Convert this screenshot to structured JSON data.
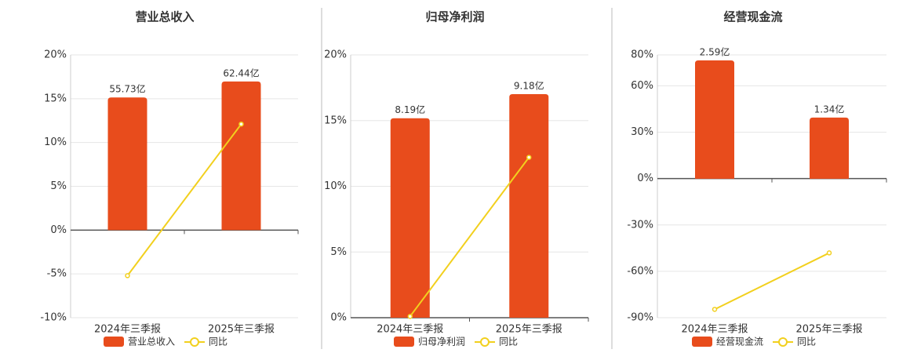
{
  "chart_data": [
    {
      "type": "combo",
      "title": "营业总收入",
      "categories": [
        "2024年三季报",
        "2025年三季报"
      ],
      "series": [
        {
          "name": "营业总收入",
          "color": "#e84c1c",
          "type": "bar",
          "axis": "y2",
          "values": [
            55.73,
            62.44
          ],
          "value_labels": [
            "55.73亿",
            "62.44亿"
          ]
        },
        {
          "name": "同比",
          "color": "#f2d01e",
          "type": "line",
          "values": [
            -5.2,
            12.1
          ]
        }
      ],
      "ylim": [
        -10,
        20
      ],
      "yticks": [
        {
          "value": -10,
          "label": "-10%"
        },
        {
          "value": -5,
          "label": "-5%"
        },
        {
          "value": 0,
          "label": "0%"
        },
        {
          "value": 5,
          "label": "5%"
        },
        {
          "value": 10,
          "label": "10%"
        },
        {
          "value": 15,
          "label": "15%"
        },
        {
          "value": 20,
          "label": "20%"
        }
      ],
      "y2lim": [
        -36.8,
        73.6
      ],
      "grid": true
    },
    {
      "type": "combo",
      "title": "归母净利润",
      "categories": [
        "2024年三季报",
        "2025年三季报"
      ],
      "series": [
        {
          "name": "归母净利润",
          "color": "#e84c1c",
          "type": "bar",
          "axis": "y2",
          "values": [
            8.19,
            9.18
          ],
          "value_labels": [
            "8.19亿",
            "9.18亿"
          ]
        },
        {
          "name": "同比",
          "color": "#f2d01e",
          "type": "line",
          "values": [
            0.1,
            12.2
          ]
        }
      ],
      "ylim": [
        0,
        20
      ],
      "yticks": [
        {
          "value": 0,
          "label": "0%"
        },
        {
          "value": 5,
          "label": "5%"
        },
        {
          "value": 10,
          "label": "10%"
        },
        {
          "value": 15,
          "label": "15%"
        },
        {
          "value": 20,
          "label": "20%"
        }
      ],
      "y2lim": [
        0,
        10.79
      ],
      "grid": true
    },
    {
      "type": "combo",
      "title": "经营现金流",
      "categories": [
        "2024年三季报",
        "2025年三季报"
      ],
      "series": [
        {
          "name": "经营现金流",
          "color": "#e84c1c",
          "type": "bar",
          "axis": "y2",
          "values": [
            2.59,
            1.34
          ],
          "value_labels": [
            "2.59亿",
            "1.34亿"
          ]
        },
        {
          "name": "同比",
          "color": "#f2d01e",
          "type": "line",
          "values": [
            -84.6,
            -48.1
          ]
        }
      ],
      "ylim": [
        -90,
        80
      ],
      "yticks": [
        {
          "value": -90,
          "label": "-90%"
        },
        {
          "value": -60,
          "label": "-60%"
        },
        {
          "value": -30,
          "label": "-30%"
        },
        {
          "value": 0,
          "label": "0%"
        },
        {
          "value": 30,
          "label": "30%"
        },
        {
          "value": 60,
          "label": "60%"
        },
        {
          "value": 80,
          "label": "80%"
        }
      ],
      "y2lim": [
        -3.04,
        2.71
      ],
      "grid": true
    }
  ]
}
